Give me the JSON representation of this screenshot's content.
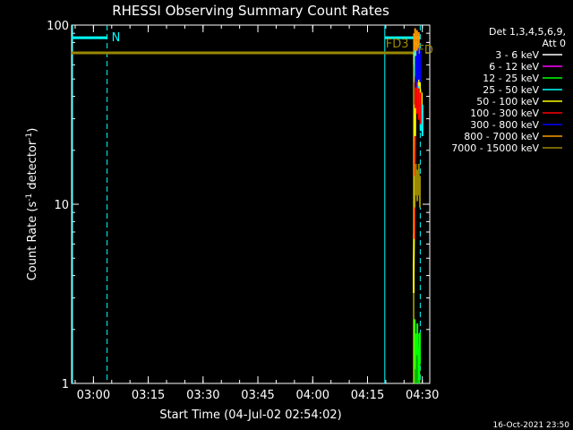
{
  "chart_data": {
    "type": "line",
    "title": "RHESSI Observing Summary Count Rates",
    "xlabel": "Start Time (04-Jul-02 02:54:02)",
    "ylabel_main": "Count Rate (s",
    "ylabel_sup1": "-1",
    "ylabel_mid": " detector",
    "ylabel_sup2": "-1",
    "ylabel_end": ")",
    "yscale": "log",
    "ylim": [
      1,
      100
    ],
    "xlim_minutes": [
      0,
      98
    ],
    "x_ticks": [
      {
        "label": "03:00",
        "min": 5.97
      },
      {
        "label": "03:15",
        "min": 20.97
      },
      {
        "label": "03:30",
        "min": 35.97
      },
      {
        "label": "03:45",
        "min": 50.97
      },
      {
        "label": "04:00",
        "min": 65.97
      },
      {
        "label": "04:15",
        "min": 80.97
      },
      {
        "label": "04:30",
        "min": 95.97
      }
    ],
    "y_ticks": [
      {
        "label": "1",
        "value": 1
      },
      {
        "label": "10",
        "value": 10
      },
      {
        "label": "100",
        "value": 100
      }
    ],
    "legend_header": [
      "Det 1,3,4,5,6,9,",
      "Att 0"
    ],
    "series": [
      {
        "name": "3 - 6 keV",
        "color": "#ffffff"
      },
      {
        "name": "6 - 12 keV",
        "color": "#ff00ff"
      },
      {
        "name": "12 - 25 keV",
        "color": "#00ff00"
      },
      {
        "name": "25 - 50 keV",
        "color": "#00ffff"
      },
      {
        "name": "50 - 100 keV",
        "color": "#ffff00"
      },
      {
        "name": "100 - 300 keV",
        "color": "#ff0000"
      },
      {
        "name": "300 - 800 keV",
        "color": "#0000ff"
      },
      {
        "name": "800 - 7000 keV",
        "color": "#ff9900"
      },
      {
        "name": "7000 - 15000 keV",
        "color": "#998800"
      }
    ],
    "flat_level": {
      "series": "7000 - 15000 keV",
      "value": 70,
      "x_from": 0,
      "x_to": 93.7
    },
    "annotations": [
      {
        "label": "N",
        "x": 9.7
      },
      {
        "label": "FD3",
        "x": 85.7
      },
      {
        "label": "FD",
        "x": 95.4
      }
    ],
    "vertical_lines": [
      {
        "x": 0,
        "style": "solid"
      },
      {
        "x": 9.7,
        "style": "dashed"
      },
      {
        "x": 85.7,
        "style": "solid"
      },
      {
        "x": 95.4,
        "style": "dashed"
      }
    ],
    "burst_traces": [
      {
        "series": "50 - 100 keV",
        "color": "#ffff00",
        "x": [
          93.6,
          94.0,
          94.4,
          94.8,
          95.3,
          95.8
        ],
        "y": [
          4,
          30,
          60,
          55,
          45,
          35
        ]
      },
      {
        "series": "800 - 7000 keV",
        "color": "#ff9900",
        "x": [
          93.7,
          94.0,
          94.5,
          95.0
        ],
        "y": [
          75,
          80,
          78,
          76
        ]
      },
      {
        "series": "25 - 50 keV",
        "color": "#00ffff",
        "x": [
          94.0,
          94.5,
          95.0,
          95.5,
          96.0
        ],
        "y": [
          60,
          45,
          38,
          32,
          30
        ]
      },
      {
        "series": "100 - 300 keV",
        "color": "#ff0000",
        "x": [
          93.8,
          94.1,
          94.5,
          95.0,
          95.5
        ],
        "y": [
          8,
          43,
          40,
          37,
          35
        ]
      },
      {
        "series": "300 - 800 keV",
        "color": "#0000ff",
        "x": [
          94.2,
          94.6,
          95.0,
          95.4
        ],
        "y": [
          56,
          60,
          62,
          60
        ]
      },
      {
        "series": "7000 - 15000 keV",
        "color": "#998800",
        "x": [
          93.9,
          94.2,
          94.6,
          95.0,
          95.3
        ],
        "y": [
          12,
          14,
          13,
          14,
          12
        ]
      },
      {
        "series": "12 - 25 keV",
        "color": "#00ff00",
        "x": [
          93.9,
          94.2,
          94.6,
          95.0,
          95.3
        ],
        "y": [
          1.9,
          1.5,
          1.8,
          1.3,
          1.6
        ]
      }
    ],
    "top_bars": [
      {
        "label": "N-bar",
        "color": "#00ffff",
        "x_from": 0,
        "x_to": 9.7,
        "value": 85
      },
      {
        "label": "FD3-bar",
        "color": "#00ffff",
        "x_from": 85.7,
        "x_to": 95.4,
        "value": 85
      }
    ]
  },
  "footer_date": "16-Oct-2021 23:50"
}
